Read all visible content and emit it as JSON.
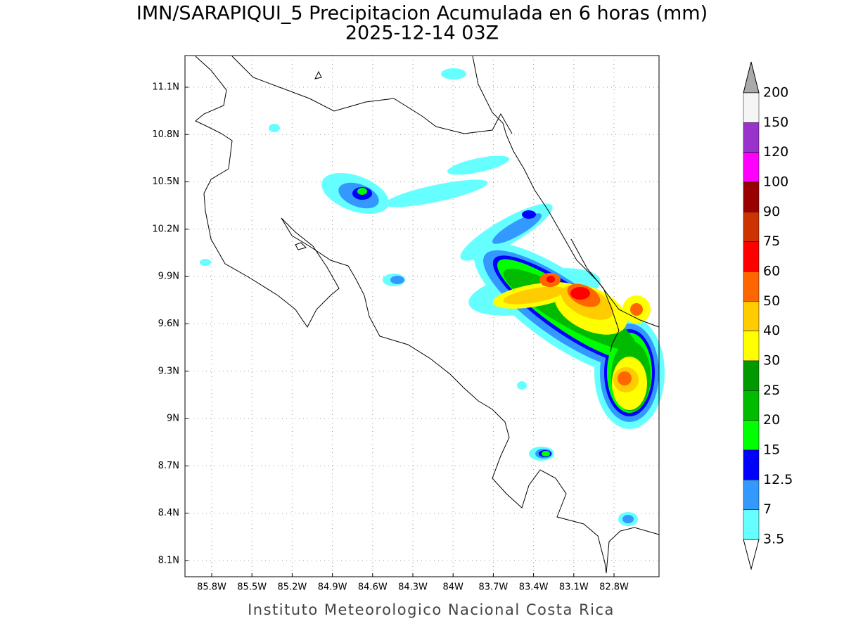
{
  "map": {
    "title": "IMN/SARAPIQUI_5 Precipitacion Acumulada en 6 horas (mm)",
    "subtitle": "2025-12-14 03Z",
    "xticks": [
      "85.8W",
      "85.5W",
      "85.2W",
      "84.9W",
      "84.6W",
      "84.3W",
      "84W",
      "83.7W",
      "83.4W",
      "83.1W",
      "82.8W"
    ],
    "yticks": [
      "11.1N",
      "10.8N",
      "10.5N",
      "10.2N",
      "9.9N",
      "9.6N",
      "9.3N",
      "9N",
      "8.7N",
      "8.4N",
      "8.1N"
    ],
    "colorbar": {
      "levels": [
        200,
        150,
        120,
        100,
        90,
        75,
        60,
        50,
        40,
        30,
        25,
        20,
        15,
        12.5,
        7,
        3.5
      ],
      "colors": [
        "#f5f5f5",
        "#9933cc",
        "#ff00ff",
        "#990000",
        "#cc3300",
        "#ff0000",
        "#ff6600",
        "#ffcc00",
        "#ffff00",
        "#009900",
        "#00bb00",
        "#00ff00",
        "#0000ff",
        "#3399ff",
        "#66ffff"
      ],
      "over_color": "#aaaaaa",
      "under_color": "#ffffff"
    },
    "footer": "Instituto Meteorologico Nacional Costa Rica"
  }
}
